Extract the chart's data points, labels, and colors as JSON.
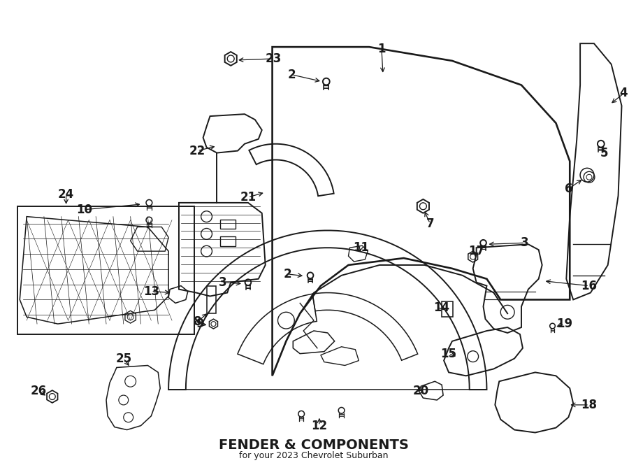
{
  "title": "FENDER & COMPONENTS",
  "subtitle": "for your 2023 Chevrolet Suburban",
  "bg_color": "#ffffff",
  "line_color": "#1a1a1a",
  "fig_width": 9.0,
  "fig_height": 6.62,
  "dpi": 100
}
